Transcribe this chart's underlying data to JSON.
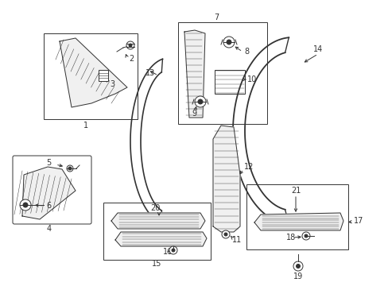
{
  "bg_color": "#ffffff",
  "fig_width": 4.89,
  "fig_height": 3.6,
  "dpi": 100,
  "line_color": "#333333",
  "lw": 0.7
}
